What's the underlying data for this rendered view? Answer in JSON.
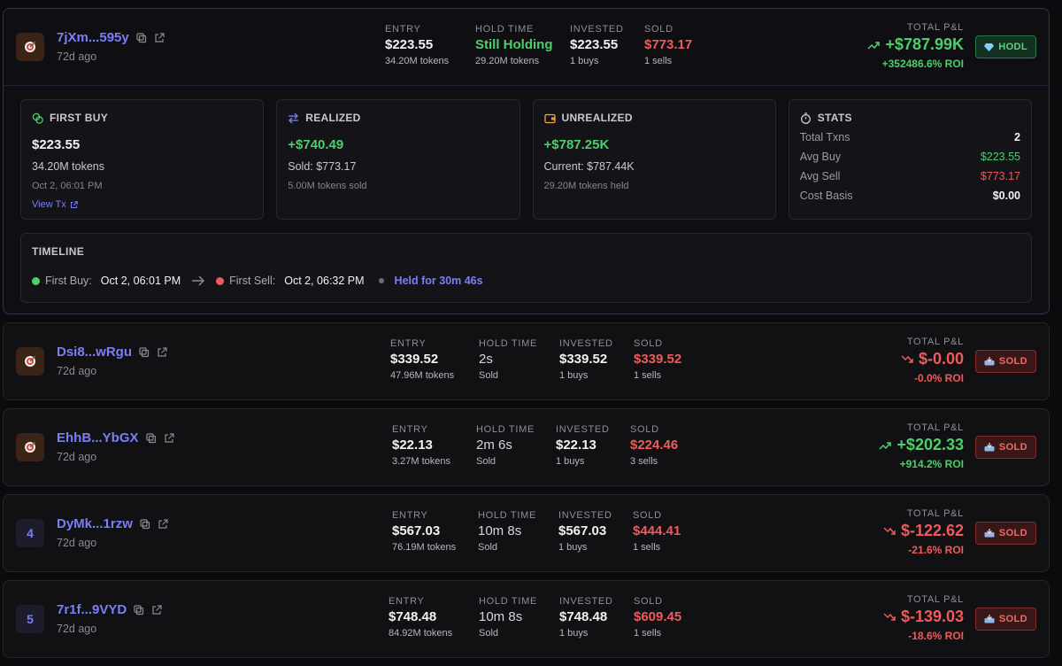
{
  "colors": {
    "green": "#4ccf6a",
    "red": "#ef5b5b",
    "accent": "#7b7ff5"
  },
  "labels": {
    "entry": "ENTRY",
    "hold": "HOLD TIME",
    "invested": "INVESTED",
    "sold": "SOLD",
    "pnl": "TOTAL P&L"
  },
  "trades": [
    {
      "avatar": "",
      "address": "7jXm...595y",
      "ago": "72d ago",
      "entry": "$223.55",
      "entry_tokens": "34.20M tokens",
      "hold": "Still Holding",
      "hold_sub": "29.20M tokens",
      "invested": "$223.55",
      "buys": "1 buys",
      "sold": "$773.17",
      "sells": "1 sells",
      "pnl": "+$787.99K",
      "roi": "+352486.6% ROI",
      "badge": "HODL"
    },
    {
      "avatar": "",
      "address": "Dsi8...wRgu",
      "ago": "72d ago",
      "entry": "$339.52",
      "entry_tokens": "47.96M tokens",
      "hold": "2s",
      "hold_sub": "Sold",
      "invested": "$339.52",
      "buys": "1 buys",
      "sold": "$339.52",
      "sells": "1 sells",
      "pnl": "$-0.00",
      "roi": "-0.0% ROI",
      "badge": "SOLD"
    },
    {
      "avatar": "",
      "address": "EhhB...YbGX",
      "ago": "72d ago",
      "entry": "$22.13",
      "entry_tokens": "3.27M tokens",
      "hold": "2m 6s",
      "hold_sub": "Sold",
      "invested": "$22.13",
      "buys": "1 buys",
      "sold": "$224.46",
      "sells": "3 sells",
      "pnl": "+$202.33",
      "roi": "+914.2% ROI",
      "badge": "SOLD"
    },
    {
      "avatar": "4",
      "address": "DyMk...1rzw",
      "ago": "72d ago",
      "entry": "$567.03",
      "entry_tokens": "76.19M tokens",
      "hold": "10m 8s",
      "hold_sub": "Sold",
      "invested": "$567.03",
      "buys": "1 buys",
      "sold": "$444.41",
      "sells": "1 sells",
      "pnl": "$-122.62",
      "roi": "-21.6% ROI",
      "badge": "SOLD"
    },
    {
      "avatar": "5",
      "address": "7r1f...9VYD",
      "ago": "72d ago",
      "entry": "$748.48",
      "entry_tokens": "84.92M tokens",
      "hold": "10m 8s",
      "hold_sub": "Sold",
      "invested": "$748.48",
      "buys": "1 buys",
      "sold": "$609.45",
      "sells": "1 sells",
      "pnl": "$-139.03",
      "roi": "-18.6% ROI",
      "badge": "SOLD"
    }
  ],
  "detail": {
    "first_buy": {
      "title": "FIRST BUY",
      "amount": "$223.55",
      "tokens": "34.20M tokens",
      "time": "Oct 2, 06:01 PM",
      "link": "View Tx"
    },
    "realized": {
      "title": "REALIZED",
      "amount": "+$740.49",
      "sold": "Sold: $773.17",
      "tokens": "5.00M tokens sold"
    },
    "unrealized": {
      "title": "UNREALIZED",
      "amount": "+$787.25K",
      "current": "Current: $787.44K",
      "tokens": "29.20M tokens held"
    },
    "stats": {
      "title": "STATS",
      "rows": [
        {
          "label": "Total Txns",
          "value": "2"
        },
        {
          "label": "Avg Buy",
          "value": "$223.55"
        },
        {
          "label": "Avg Sell",
          "value": "$773.17"
        },
        {
          "label": "Cost Basis",
          "value": "$0.00"
        }
      ]
    },
    "timeline": {
      "title": "TIMELINE",
      "first_buy_label": "First Buy:",
      "first_buy_value": "Oct 2, 06:01 PM",
      "first_sell_label": "First Sell:",
      "first_sell_value": "Oct 2, 06:32 PM",
      "held": "Held for 30m 46s"
    }
  }
}
